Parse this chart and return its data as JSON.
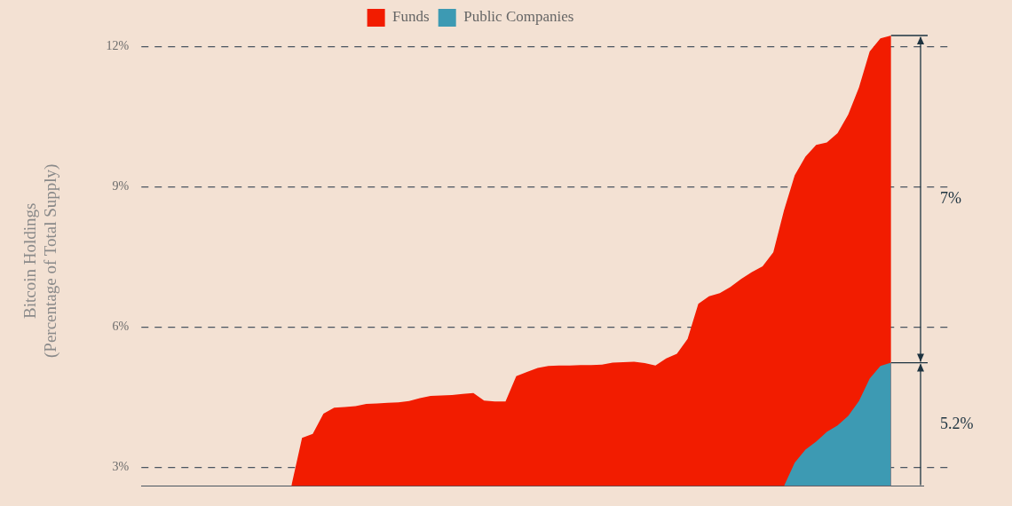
{
  "chart_data": {
    "type": "area",
    "ylabel": "Bitcoin Holdings\n(Percentage of Total Supply)",
    "categories": [
      null,
      null,
      null,
      null,
      null,
      null,
      null,
      null,
      null,
      null,
      null,
      null,
      null,
      null,
      null,
      null,
      null,
      null,
      null,
      null,
      null,
      null,
      null,
      null,
      null,
      null,
      null,
      null,
      null,
      null,
      null,
      null,
      null,
      null,
      null,
      null,
      null,
      null,
      null,
      null,
      null,
      null,
      null,
      null,
      null,
      null,
      null,
      null,
      null,
      null,
      null,
      null,
      null,
      null,
      null,
      null,
      null,
      null,
      null,
      null,
      null,
      null,
      null,
      null,
      null,
      null,
      null,
      null,
      null,
      null,
      null,
      null,
      null,
      null
    ],
    "series": [
      {
        "name": "Funds",
        "color": "#f21c00",
        "values": [
          null,
          null,
          null,
          null,
          null,
          null,
          null,
          null,
          null,
          null,
          null,
          null,
          null,
          null,
          2.6,
          3.63,
          3.72,
          4.15,
          4.28,
          4.29,
          4.31,
          4.36,
          4.37,
          4.38,
          4.39,
          4.42,
          4.48,
          4.53,
          4.54,
          4.55,
          4.57,
          4.59,
          4.43,
          4.41,
          4.41,
          4.95,
          5.04,
          5.13,
          5.17,
          5.18,
          5.18,
          5.19,
          5.19,
          5.2,
          5.24,
          5.25,
          5.26,
          5.23,
          5.18,
          5.33,
          5.43,
          5.75,
          6.5,
          6.66,
          6.73,
          6.86,
          7.03,
          7.18,
          7.3,
          7.6,
          8.5,
          9.25,
          9.65,
          9.9,
          9.95,
          10.15,
          10.55,
          11.13,
          11.9,
          12.18,
          12.24,
          null,
          null,
          null
        ]
      },
      {
        "name": "Public Companies",
        "color": "#3d9ab3",
        "values": [
          null,
          null,
          null,
          null,
          null,
          null,
          null,
          null,
          null,
          null,
          null,
          null,
          null,
          null,
          null,
          null,
          null,
          null,
          null,
          null,
          null,
          null,
          null,
          null,
          null,
          null,
          null,
          null,
          null,
          null,
          null,
          null,
          null,
          null,
          null,
          null,
          null,
          null,
          null,
          null,
          null,
          null,
          null,
          null,
          null,
          null,
          null,
          null,
          null,
          null,
          null,
          null,
          null,
          null,
          null,
          null,
          null,
          null,
          null,
          null,
          2.6,
          3.1,
          3.38,
          3.55,
          3.76,
          3.9,
          4.1,
          4.42,
          4.9,
          5.17,
          5.24,
          null,
          null,
          null
        ]
      }
    ],
    "ylim": [
      2.6,
      12.24
    ],
    "yticks": [
      {
        "value": 3,
        "label": "3%"
      },
      {
        "value": 6,
        "label": "6%"
      },
      {
        "value": 9,
        "label": "9%"
      },
      {
        "value": 12,
        "label": "12%"
      }
    ],
    "grid": "y",
    "legend": "top",
    "marker": "none",
    "tick_labels": "y",
    "annotations": [
      "7%",
      "5.2%"
    ]
  }
}
